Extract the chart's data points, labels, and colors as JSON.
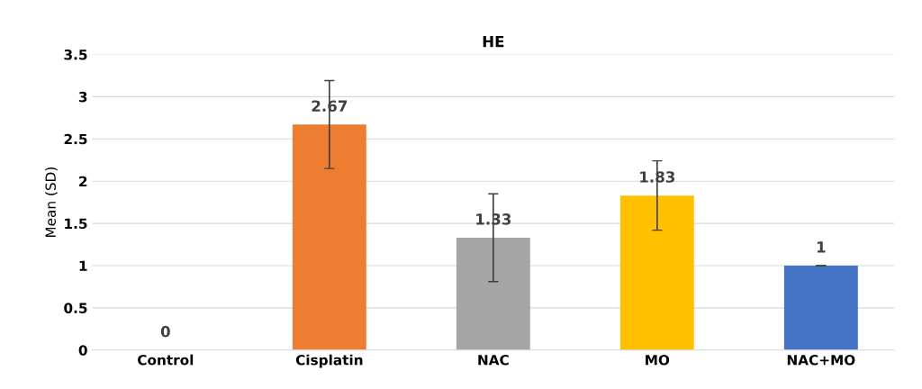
{
  "chart_data": {
    "type": "bar",
    "title": "HE",
    "ylabel": "Mean (SD)",
    "categories": [
      "Control",
      "Cisplatin",
      "NAC",
      "MO",
      "NAC+MO"
    ],
    "values": [
      0,
      2.67,
      1.33,
      1.83,
      1
    ],
    "colors": [
      "#4472c4",
      "#ed7d31",
      "#a5a5a5",
      "#ffc000",
      "#4472c4"
    ],
    "errors": [
      null,
      0.52,
      0.52,
      0.41,
      0
    ],
    "data_labels": true,
    "ylim": [
      0,
      3.5
    ],
    "yticks": [
      0,
      0.5,
      1,
      1.5,
      2,
      2.5,
      3,
      3.5
    ],
    "grid": "y",
    "legend": false
  }
}
